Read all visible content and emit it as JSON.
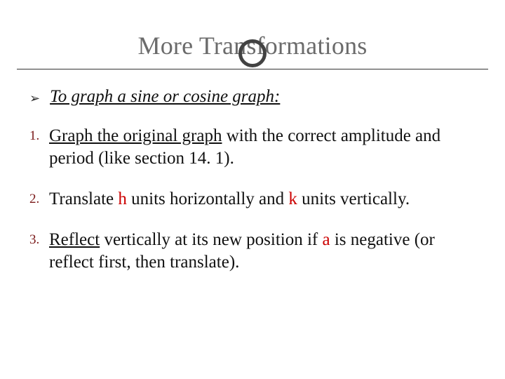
{
  "slide": {
    "title": "More Transformations",
    "title_color": "#6b6b6b",
    "title_fontsize": 36,
    "accent_circle": {
      "border_color": "#424242",
      "border_width": 5,
      "size": 40
    },
    "rule_color": "#333333",
    "background_color": "#ffffff",
    "bullet": {
      "marker": "➢",
      "marker_color": "#2b2b2b",
      "text": "To graph a sine or cosine graph:",
      "italic": true,
      "underline": true,
      "fontsize": 25
    },
    "items": [
      {
        "num": "1.",
        "pre": "",
        "u1": "Graph the original graph",
        "mid1": " with the correct amplitude and period (like section 14. 1).",
        "r1": "",
        "mid2": "",
        "r2": "",
        "post": ""
      },
      {
        "num": "2.",
        "pre": "Translate ",
        "u1": "",
        "mid1": "",
        "r1": "h",
        "mid2": " units horizontally and ",
        "r2": "k",
        "post": " units vertically."
      },
      {
        "num": "3.",
        "pre": "",
        "u1": "Reflect",
        "mid1": " vertically at its new position if ",
        "r1": "a",
        "mid2": " is negative (or reflect first, then translate).",
        "r2": "",
        "post": ""
      }
    ],
    "num_color": "#7a1818",
    "body_fontsize": 25,
    "red_color": "#cc0000"
  }
}
